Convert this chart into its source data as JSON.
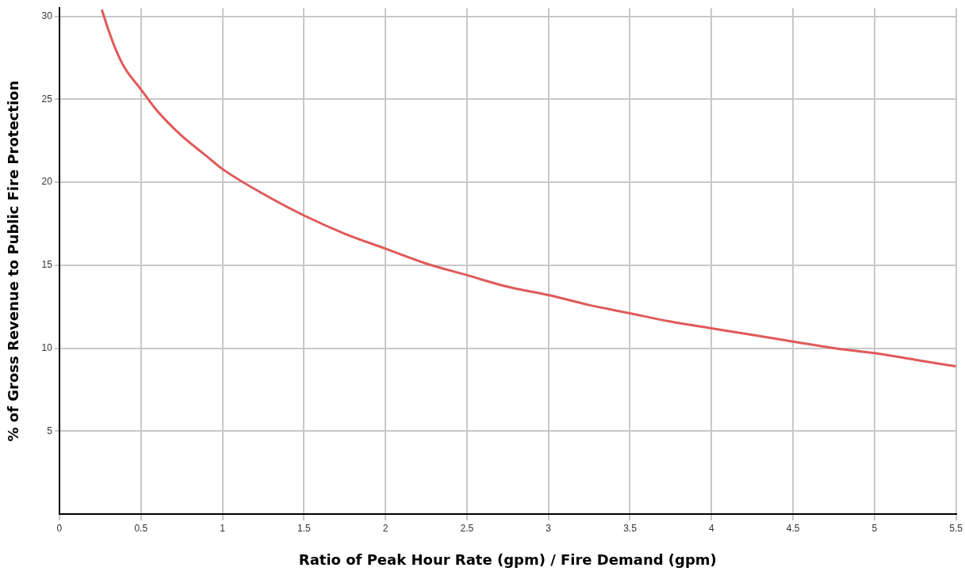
{
  "chart_data": {
    "type": "line",
    "xlabel": "Ratio of Peak Hour Rate (gpm) / Fire Demand (gpm)",
    "ylabel": "% of Gross Revenue to Public Fire Protection",
    "series": [
      {
        "color": "#e05a5a",
        "x": [
          0.26,
          0.3,
          0.35,
          0.4,
          0.5,
          0.6,
          0.75,
          0.9,
          1,
          1.25,
          1.5,
          1.75,
          2,
          2.25,
          2.5,
          2.75,
          3,
          3.25,
          3.5,
          3.75,
          4,
          4.25,
          4.5,
          4.75,
          5,
          5.25,
          5.5
        ],
        "values": [
          30.4,
          29.2,
          27.9,
          26.9,
          25.6,
          24.3,
          22.8,
          21.6,
          20.8,
          19.3,
          18,
          16.9,
          16,
          15.1,
          14.4,
          13.7,
          13.2,
          12.6,
          12.1,
          11.6,
          11.2,
          10.8,
          10.4,
          10,
          9.7,
          9.3,
          8.9
        ]
      }
    ],
    "xlim": [
      0,
      5.5
    ],
    "xticks": [
      0,
      0.5,
      1,
      1.5,
      2,
      2.5,
      3,
      3.5,
      4,
      4.5,
      5,
      5.5
    ],
    "ylim": [
      0,
      30.5
    ],
    "yticks": [
      5,
      10,
      15,
      20,
      25,
      30
    ],
    "grid": true,
    "legend": false,
    "marker": "none",
    "line_style": "solid"
  }
}
